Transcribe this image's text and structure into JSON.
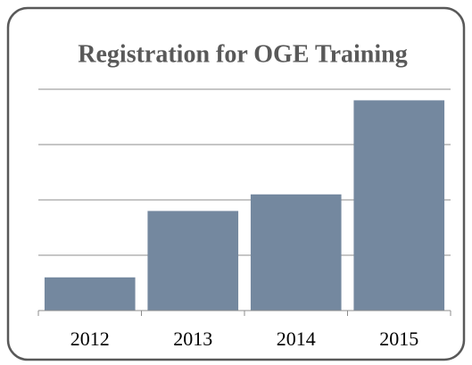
{
  "chart_data": {
    "type": "bar",
    "title": "Registration for OGE Training",
    "categories": [
      "2012",
      "2013",
      "2014",
      "2015"
    ],
    "values": [
      0.6,
      1.8,
      2.1,
      3.8
    ],
    "color": "#74889f",
    "ylim": [
      0,
      4
    ],
    "yticks": [
      0,
      1,
      2,
      3,
      4
    ],
    "grid": true
  }
}
